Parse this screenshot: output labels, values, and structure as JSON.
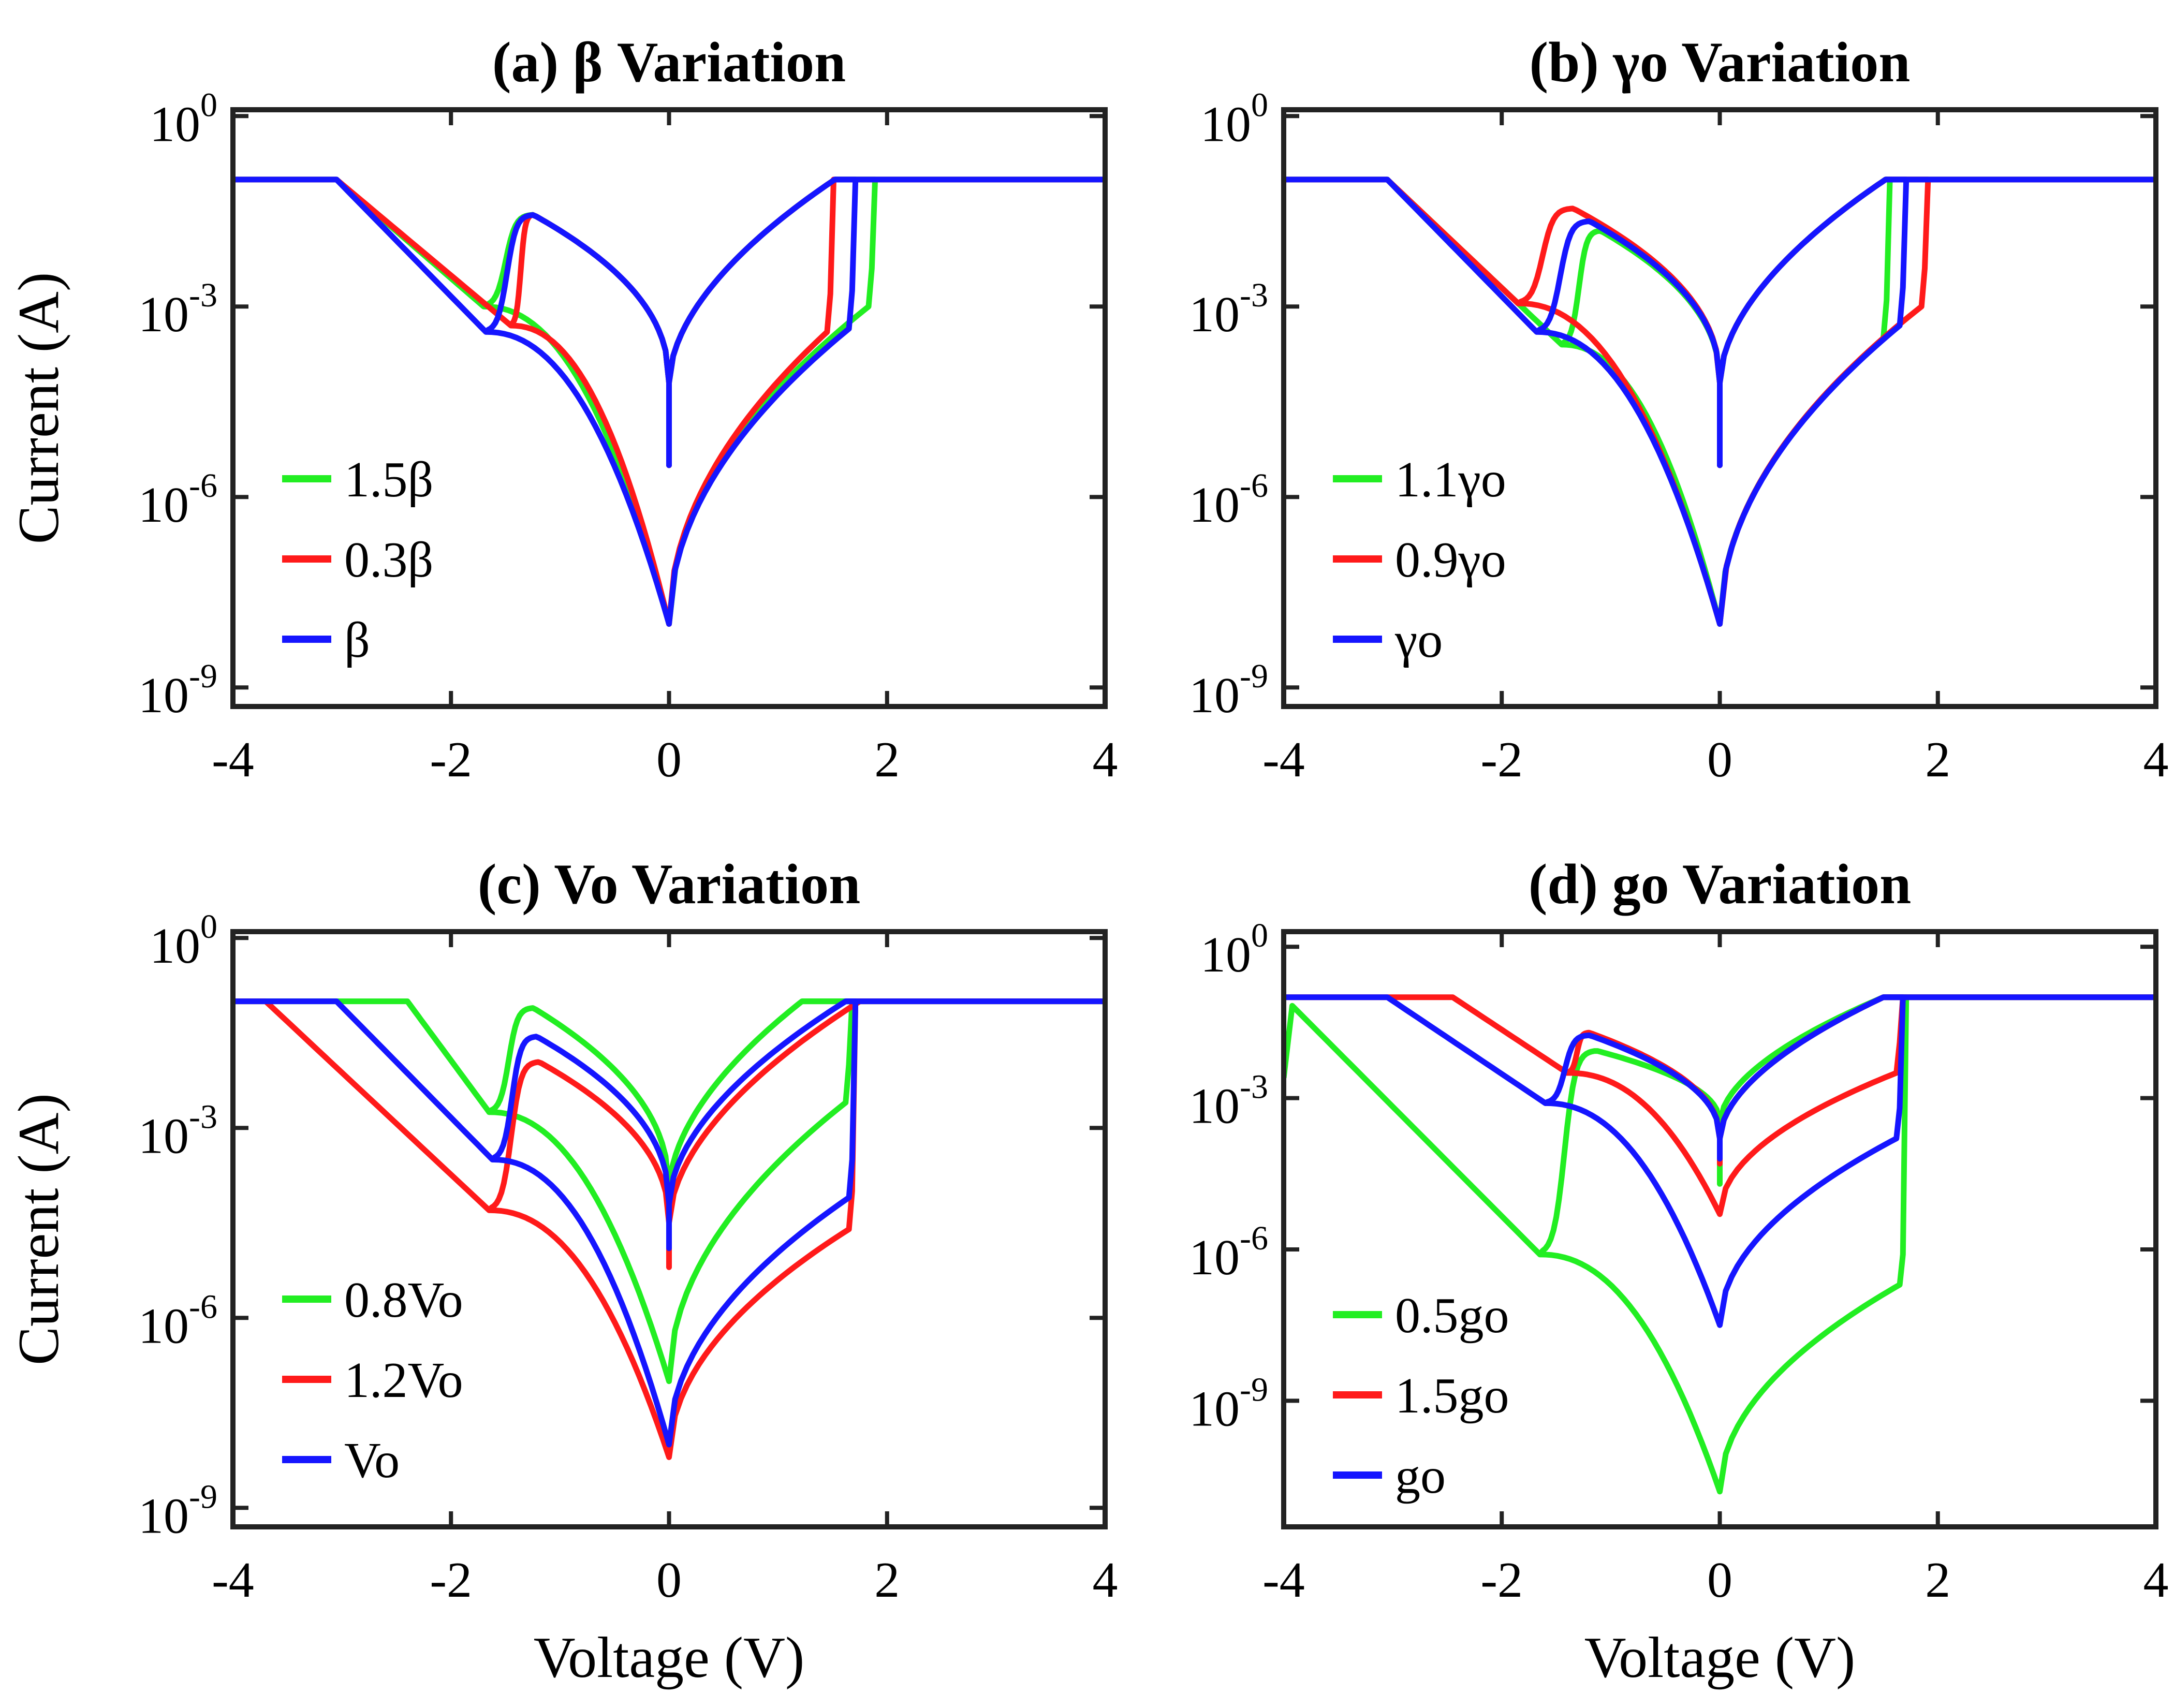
{
  "colors": {
    "green": "#22ee22",
    "red": "#ff1a1a",
    "blue": "#1515ff",
    "axis": "#222222"
  },
  "chart_data": [
    {
      "type": "line",
      "title": "(a)  β  Variation",
      "xlabel": "",
      "ylabel": "Current (A)",
      "xlim": [
        -4,
        4
      ],
      "ylim_log10": [
        -9.3,
        0.1
      ],
      "y_scale": "log",
      "x_ticks": [
        "-4",
        "-2",
        "0",
        "2",
        "4"
      ],
      "y_ticks": [
        {
          "base": "10",
          "exp": "0"
        },
        {
          "base": "10",
          "exp": "-3"
        },
        {
          "base": "10",
          "exp": "-6"
        },
        {
          "base": "10",
          "exp": "-9"
        }
      ],
      "legend_position": "lower-left",
      "series": [
        {
          "name": "1.5β",
          "color": "#22ee22",
          "points": [
            [
              -4,
              -1
            ],
            [
              -3.05,
              -1
            ],
            [
              -2.5,
              -1.71
            ],
            [
              -2.0,
              -2.6
            ],
            [
              -1.8,
              -2.95
            ],
            [
              -1.65,
              -2.98
            ],
            [
              -1.5,
              -2.7
            ],
            [
              -1.38,
              -2.05
            ],
            [
              -1.3,
              -1.6
            ],
            [
              -1.2,
              -1.55
            ],
            [
              -1.0,
              -1.9
            ],
            [
              -0.7,
              -2.45
            ],
            [
              -0.4,
              -3.1
            ],
            [
              -0.2,
              -3.6
            ],
            [
              -0.08,
              -4.1
            ],
            [
              -0.02,
              -4.6
            ],
            [
              0,
              -5.5
            ],
            [
              0,
              -8.0
            ],
            [
              0,
              -5.5
            ],
            [
              0.02,
              -4.6
            ],
            [
              0.08,
              -4.1
            ],
            [
              0.2,
              -3.6
            ],
            [
              0.5,
              -2.95
            ],
            [
              1.0,
              -2.0
            ],
            [
              1.4,
              -1.15
            ],
            [
              1.52,
              -1.0
            ],
            [
              1.52,
              -1.0
            ],
            [
              1.52,
              -1.0
            ],
            [
              1.52,
              -1.0
            ],
            [
              4,
              -1
            ]
          ],
          "lower_branch": [
            [
              1.52,
              -1.0
            ],
            [
              1.3,
              -1.43
            ],
            [
              1.0,
              -2.1
            ],
            [
              0.6,
              -3.05
            ],
            [
              0.3,
              -3.9
            ],
            [
              0.1,
              -4.6
            ],
            [
              0.03,
              -5.3
            ],
            [
              0,
              -8.0
            ],
            [
              -0.03,
              -5.3
            ],
            [
              -0.1,
              -4.6
            ],
            [
              -0.3,
              -3.9
            ],
            [
              -0.7,
              -3.5
            ]
          ]
        },
        {
          "name": "0.3β",
          "color": "#ff1a1a",
          "points": [
            [
              -4,
              -1
            ],
            [
              -3.05,
              -1
            ],
            [
              -2.0,
              -2.6
            ],
            [
              -1.55,
              -3.25
            ],
            [
              -1.48,
              -2.8
            ],
            [
              -1.4,
              -2.1
            ],
            [
              -1.3,
              -1.6
            ],
            [
              -1.2,
              -1.55
            ],
            [
              -1.0,
              -1.9
            ],
            [
              -0.7,
              -2.45
            ],
            [
              -0.4,
              -3.1
            ],
            [
              -0.2,
              -3.6
            ],
            [
              -0.08,
              -4.1
            ],
            [
              -0.02,
              -4.6
            ],
            [
              0,
              -5.5
            ],
            [
              0,
              -8.0
            ],
            [
              0,
              -5.5
            ],
            [
              0.02,
              -4.6
            ],
            [
              0.08,
              -4.1
            ],
            [
              0.2,
              -3.6
            ],
            [
              0.5,
              -2.95
            ],
            [
              1.0,
              -2.0
            ],
            [
              1.4,
              -1.15
            ],
            [
              1.52,
              -1.0
            ],
            [
              4,
              -1
            ]
          ]
        },
        {
          "name": "β",
          "color": "#1515ff",
          "points": [
            [
              -4,
              -1
            ],
            [
              -3.05,
              -1
            ],
            [
              -2.0,
              -2.6
            ],
            [
              -1.72,
              -3.2
            ],
            [
              -1.55,
              -3.0
            ],
            [
              -1.42,
              -2.4
            ],
            [
              -1.32,
              -1.7
            ],
            [
              -1.2,
              -1.55
            ],
            [
              -1.0,
              -1.9
            ],
            [
              -0.7,
              -2.45
            ],
            [
              -0.4,
              -3.1
            ],
            [
              -0.2,
              -3.6
            ],
            [
              -0.08,
              -4.1
            ],
            [
              -0.02,
              -4.6
            ],
            [
              0,
              -5.5
            ],
            [
              0,
              -8.0
            ],
            [
              0,
              -5.5
            ],
            [
              0.02,
              -4.6
            ],
            [
              0.08,
              -4.1
            ],
            [
              0.2,
              -3.6
            ],
            [
              0.5,
              -2.95
            ],
            [
              1.0,
              -2.0
            ],
            [
              1.4,
              -1.15
            ],
            [
              1.52,
              -1.0
            ],
            [
              4,
              -1
            ]
          ]
        }
      ]
    },
    {
      "type": "line",
      "title": "(b)  γo  Variation",
      "xlabel": "",
      "ylabel": "",
      "xlim": [
        -4,
        4
      ],
      "ylim_log10": [
        -9.3,
        0.1
      ],
      "y_scale": "log",
      "x_ticks": [
        "-4",
        "-2",
        "0",
        "2",
        "4"
      ],
      "y_ticks": [
        {
          "base": "10",
          "exp": "0"
        },
        {
          "base": "10",
          "exp": "-3"
        },
        {
          "base": "10",
          "exp": "-6"
        },
        {
          "base": "10",
          "exp": "-9"
        }
      ],
      "legend_position": "lower-left",
      "series": [
        {
          "name": "1.1γo",
          "color": "#22ee22",
          "points": []
        },
        {
          "name": "0.9γo",
          "color": "#ff1a1a",
          "points": []
        },
        {
          "name": "γo",
          "color": "#1515ff",
          "points": []
        }
      ]
    },
    {
      "type": "line",
      "title": "(c)  Vo  Variation",
      "xlabel": "Voltage (V)",
      "ylabel": "Current (A)",
      "xlim": [
        -4,
        4
      ],
      "ylim_log10": [
        -9.3,
        0.1
      ],
      "y_scale": "log",
      "x_ticks": [
        "-4",
        "-2",
        "0",
        "2",
        "4"
      ],
      "y_ticks": [
        {
          "base": "10",
          "exp": "0"
        },
        {
          "base": "10",
          "exp": "-3"
        },
        {
          "base": "10",
          "exp": "-6"
        },
        {
          "base": "10",
          "exp": "-9"
        }
      ],
      "legend_position": "lower-left",
      "series": [
        {
          "name": "0.8Vo",
          "color": "#22ee22",
          "points": []
        },
        {
          "name": "1.2Vo",
          "color": "#ff1a1a",
          "points": []
        },
        {
          "name": "Vo",
          "color": "#1515ff",
          "points": []
        }
      ]
    },
    {
      "type": "line",
      "title": "(d)  go  Variation",
      "xlabel": "Voltage (V)",
      "ylabel": "",
      "xlim": [
        -4,
        4
      ],
      "ylim_log10": [
        -11.5,
        0.3
      ],
      "y_scale": "log",
      "x_ticks": [
        "-4",
        "-2",
        "0",
        "2",
        "4"
      ],
      "y_ticks": [
        {
          "base": "10",
          "exp": "0"
        },
        {
          "base": "10",
          "exp": "-3"
        },
        {
          "base": "10",
          "exp": "-6"
        },
        {
          "base": "10",
          "exp": "-9"
        }
      ],
      "legend_position": "lower-left",
      "series": [
        {
          "name": "0.5go",
          "color": "#22ee22",
          "points": []
        },
        {
          "name": "1.5go",
          "color": "#ff1a1a",
          "points": []
        },
        {
          "name": "go",
          "color": "#1515ff",
          "points": []
        }
      ]
    }
  ]
}
